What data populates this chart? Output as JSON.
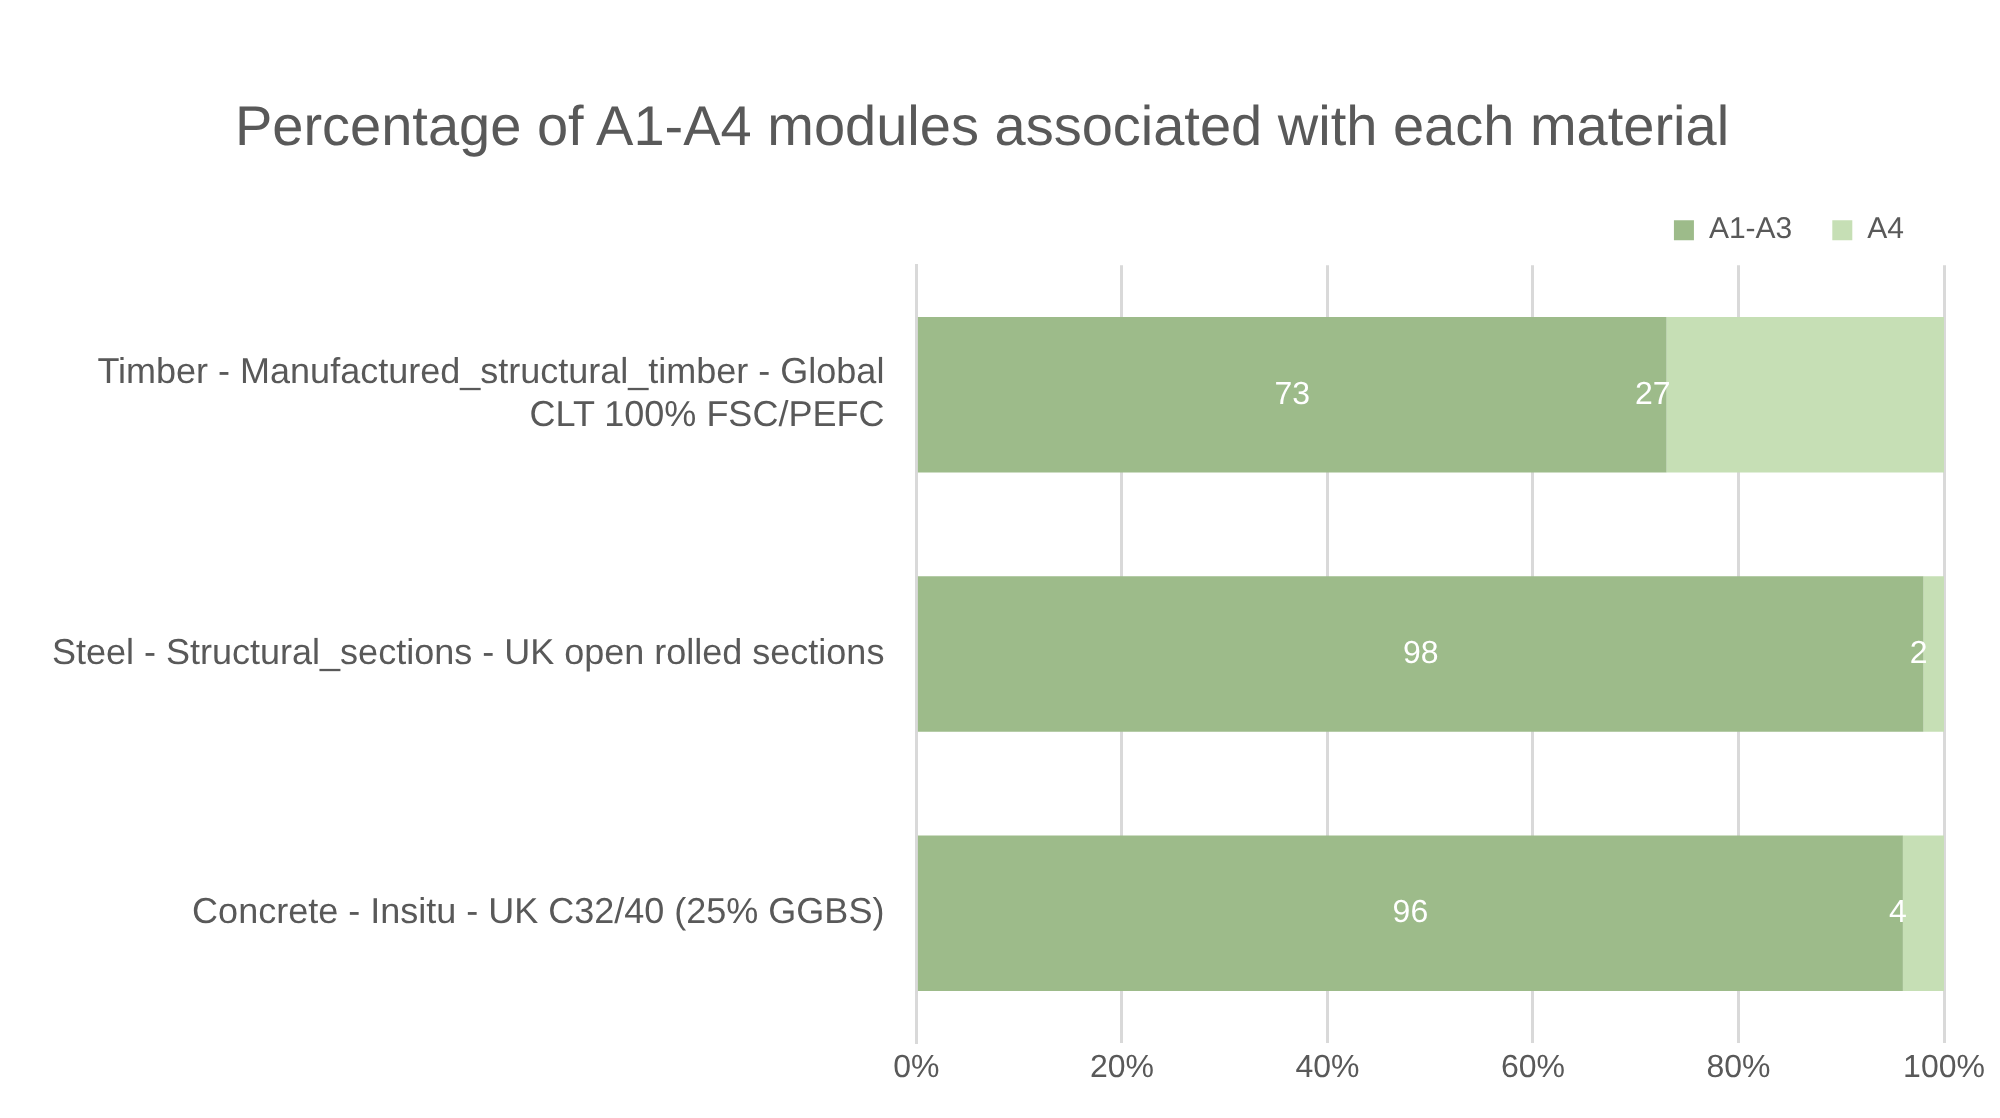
{
  "chart_data": {
    "type": "bar",
    "orientation": "horizontal",
    "stacked": true,
    "title": "Percentage of A1-A4 modules associated with each material",
    "categories": [
      "Timber - Manufactured_structural_timber - Global CLT 100% FSC/PEFC",
      "Steel - Structural_sections - UK open rolled sections",
      "Concrete - Insitu - UK C32/40 (25% GGBS)"
    ],
    "series": [
      {
        "name": "A1-A3",
        "color": "#9dbb8a",
        "values": [
          73,
          98,
          96
        ]
      },
      {
        "name": "A4",
        "color": "#c6dfb5",
        "values": [
          27,
          2,
          4
        ]
      }
    ],
    "xlim": [
      0,
      100
    ],
    "xticks": [
      {
        "value": 0,
        "label": "0%"
      },
      {
        "value": 20,
        "label": "20%"
      },
      {
        "value": 40,
        "label": "40%"
      },
      {
        "value": 60,
        "label": "60%"
      },
      {
        "value": 80,
        "label": "80%"
      },
      {
        "value": 100,
        "label": "100%"
      }
    ],
    "grid": "x",
    "legend": "top right",
    "data_labels": true
  }
}
